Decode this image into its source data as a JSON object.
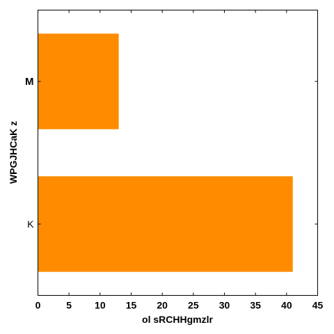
{
  "chart_data": {
    "type": "bar",
    "orientation": "horizontal",
    "title": "",
    "xlabel": "ol  sRCHHgmzlr",
    "ylabel": "WPGJHCaK z",
    "categories": [
      "K",
      "M"
    ],
    "category_bold": [
      false,
      true
    ],
    "values": [
      41,
      13
    ],
    "xlim": [
      0,
      45
    ],
    "xticks": [
      0,
      5,
      10,
      15,
      20,
      25,
      30,
      35,
      40,
      45
    ],
    "grid": false,
    "legend": "none",
    "colors": {
      "bar": "#ff8c00",
      "frame": "#000000"
    }
  }
}
